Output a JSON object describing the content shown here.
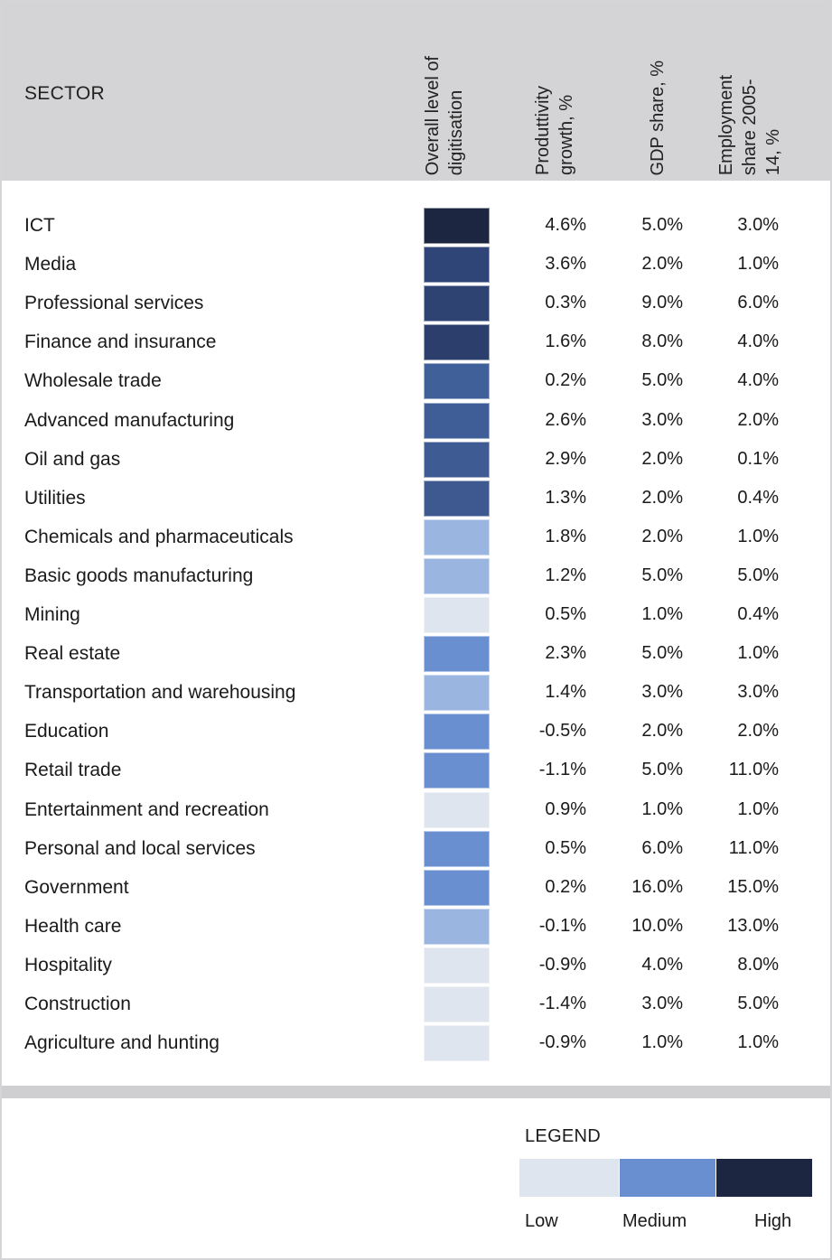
{
  "chart_data": {
    "type": "table",
    "columns": [
      "SECTOR",
      "Overall level of\ndigitisation",
      "Produttivity\ngrowth, %",
      "GDP share, %",
      "Employment\nshare 2005-\n14, %"
    ],
    "colors": {
      "high": "#1c2640",
      "dark_blue": "#2f4577",
      "mid_dark": "#3f5d96",
      "medium": "#6a8fd1",
      "light_medium": "#9ab5e0",
      "low": "#dfe5ee"
    },
    "rows": [
      {
        "sector": "ICT",
        "digitisation_color": "#1c2640",
        "productivity": "4.6%",
        "gdp": "5.0%",
        "employment": "3.0%"
      },
      {
        "sector": "Media",
        "digitisation_color": "#2f4577",
        "productivity": "3.6%",
        "gdp": "2.0%",
        "employment": "1.0%"
      },
      {
        "sector": "Professional services",
        "digitisation_color": "#2e4372",
        "productivity": "0.3%",
        "gdp": "9.0%",
        "employment": "6.0%"
      },
      {
        "sector": "Finance and insurance",
        "digitisation_color": "#2c3f6c",
        "productivity": "1.6%",
        "gdp": "8.0%",
        "employment": "4.0%"
      },
      {
        "sector": "Wholesale trade",
        "digitisation_color": "#40609a",
        "productivity": "0.2%",
        "gdp": "5.0%",
        "employment": "4.0%"
      },
      {
        "sector": "Advanced manufacturing",
        "digitisation_color": "#3f5d96",
        "productivity": "2.6%",
        "gdp": "3.0%",
        "employment": "2.0%"
      },
      {
        "sector": "Oil and gas",
        "digitisation_color": "#3e5b93",
        "productivity": "2.9%",
        "gdp": "2.0%",
        "employment": "0.1%"
      },
      {
        "sector": "Utilities",
        "digitisation_color": "#3d5990",
        "productivity": "1.3%",
        "gdp": "2.0%",
        "employment": "0.4%"
      },
      {
        "sector": "Chemicals and pharmaceuticals",
        "digitisation_color": "#9ab5e0",
        "productivity": "1.8%",
        "gdp": "2.0%",
        "employment": "1.0%"
      },
      {
        "sector": "Basic goods manufacturing",
        "digitisation_color": "#9ab5e0",
        "productivity": "1.2%",
        "gdp": "5.0%",
        "employment": "5.0%"
      },
      {
        "sector": "Mining",
        "digitisation_color": "#dfe5ee",
        "productivity": "0.5%",
        "gdp": "1.0%",
        "employment": "0.4%"
      },
      {
        "sector": "Real estate",
        "digitisation_color": "#6a8fd1",
        "productivity": "2.3%",
        "gdp": "5.0%",
        "employment": "1.0%"
      },
      {
        "sector": "Transportation and warehousing",
        "digitisation_color": "#9ab5e0",
        "productivity": "1.4%",
        "gdp": "3.0%",
        "employment": "3.0%"
      },
      {
        "sector": "Education",
        "digitisation_color": "#6a8fd1",
        "productivity": "-0.5%",
        "gdp": "2.0%",
        "employment": "2.0%"
      },
      {
        "sector": "Retail trade",
        "digitisation_color": "#6a8fd1",
        "productivity": "-1.1%",
        "gdp": "5.0%",
        "employment": "11.0%"
      },
      {
        "sector": "Entertainment and recreation",
        "digitisation_color": "#dfe5ee",
        "productivity": "0.9%",
        "gdp": "1.0%",
        "employment": "1.0%"
      },
      {
        "sector": "Personal and local services",
        "digitisation_color": "#6a8fd1",
        "productivity": "0.5%",
        "gdp": "6.0%",
        "employment": "11.0%"
      },
      {
        "sector": "Government",
        "digitisation_color": "#6a8fd1",
        "productivity": "0.2%",
        "gdp": "16.0%",
        "employment": "15.0%"
      },
      {
        "sector": "Health care",
        "digitisation_color": "#9ab5e0",
        "productivity": "-0.1%",
        "gdp": "10.0%",
        "employment": "13.0%"
      },
      {
        "sector": "Hospitality",
        "digitisation_color": "#dfe5ee",
        "productivity": "-0.9%",
        "gdp": "4.0%",
        "employment": "8.0%"
      },
      {
        "sector": "Construction",
        "digitisation_color": "#dfe5ee",
        "productivity": "-1.4%",
        "gdp": "3.0%",
        "employment": "5.0%"
      },
      {
        "sector": "Agriculture and hunting",
        "digitisation_color": "#dfe5ee",
        "productivity": "-0.9%",
        "gdp": "1.0%",
        "employment": "1.0%"
      }
    ],
    "legend": {
      "title": "LEGEND",
      "items": [
        {
          "label": "Low",
          "color": "#dfe5ee"
        },
        {
          "label": "Medium",
          "color": "#6a8fd1"
        },
        {
          "label": "High",
          "color": "#1c2640"
        }
      ]
    }
  }
}
